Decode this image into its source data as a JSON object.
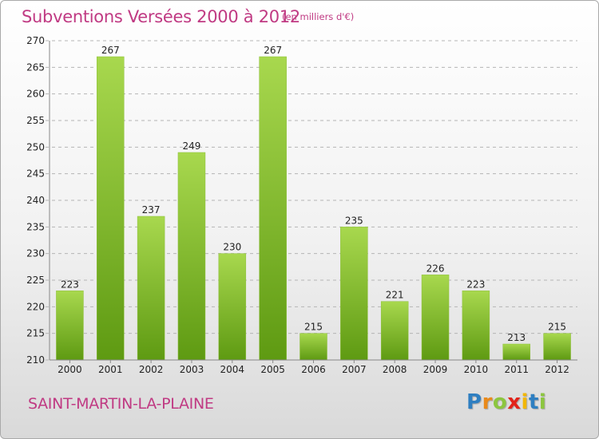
{
  "header": {
    "title": "Subventions Versées 2000 à 2012",
    "unit_note": "(en milliers d'€)"
  },
  "footer": {
    "commune_name": "SAINT-MARTIN-LA-PLAINE",
    "logo_letters": [
      "P",
      "r",
      "o",
      "x",
      "i",
      "t",
      "i"
    ],
    "logo_colors": [
      "#2f7fc1",
      "#e98a1b",
      "#8cc63f",
      "#e2231a",
      "#f2b705",
      "#2f7fc1",
      "#8cc63f"
    ]
  },
  "chart_data": {
    "type": "bar",
    "categories": [
      "2000",
      "2001",
      "2002",
      "2003",
      "2004",
      "2005",
      "2006",
      "2007",
      "2008",
      "2009",
      "2010",
      "2011",
      "2012"
    ],
    "values": [
      223,
      267,
      237,
      249,
      230,
      267,
      215,
      235,
      221,
      226,
      223,
      213,
      215
    ],
    "ylim": [
      210,
      270
    ],
    "yticks": [
      210,
      215,
      220,
      225,
      230,
      235,
      240,
      245,
      250,
      255,
      260,
      265,
      270
    ],
    "grid": true,
    "colors": {
      "bar_light": "#a8d84e",
      "bar_dark": "#5e9a12",
      "grid": "#b5b5b5",
      "axis": "#888888",
      "text": "#222222"
    }
  }
}
